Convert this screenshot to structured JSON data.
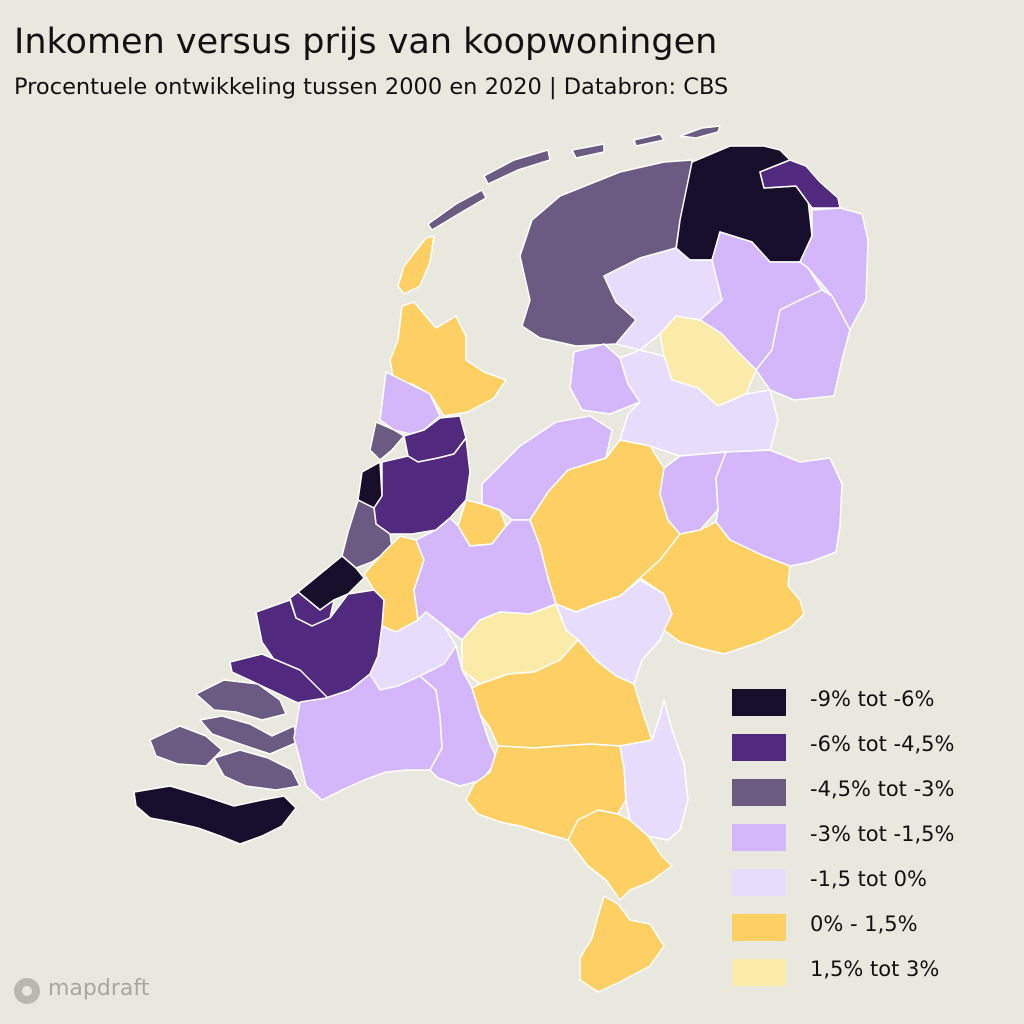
{
  "title": "Inkomen versus prijs van koopwoningen",
  "subtitle": "Procentuele ontwikkeling tussen 2000 en 2020 | Databron: CBS",
  "brand": "mapdraft",
  "colors": {
    "background": "#e9e8de",
    "c1": "#170e2c",
    "c2": "#512a7f",
    "c3": "#6b5a82",
    "c4": "#d4b6fb",
    "c5": "#e8dcfc",
    "c6": "#fecf62",
    "c7": "#fbeaa8"
  },
  "legend": [
    {
      "label": "-9% tot -6%",
      "color": "#170e2c"
    },
    {
      "label": "-6% tot -4,5%",
      "color": "#512a7f"
    },
    {
      "label": "-4,5% tot -3%",
      "color": "#6b5a82"
    },
    {
      "label": "-3% tot -1,5%",
      "color": "#d4b6fb"
    },
    {
      "label": "-1,5 tot 0%",
      "color": "#e8dcfc"
    },
    {
      "label": "0% - 1,5%",
      "color": "#fecf62"
    },
    {
      "label": "1,5% tot 3%",
      "color": "#fbeaa8"
    }
  ]
}
